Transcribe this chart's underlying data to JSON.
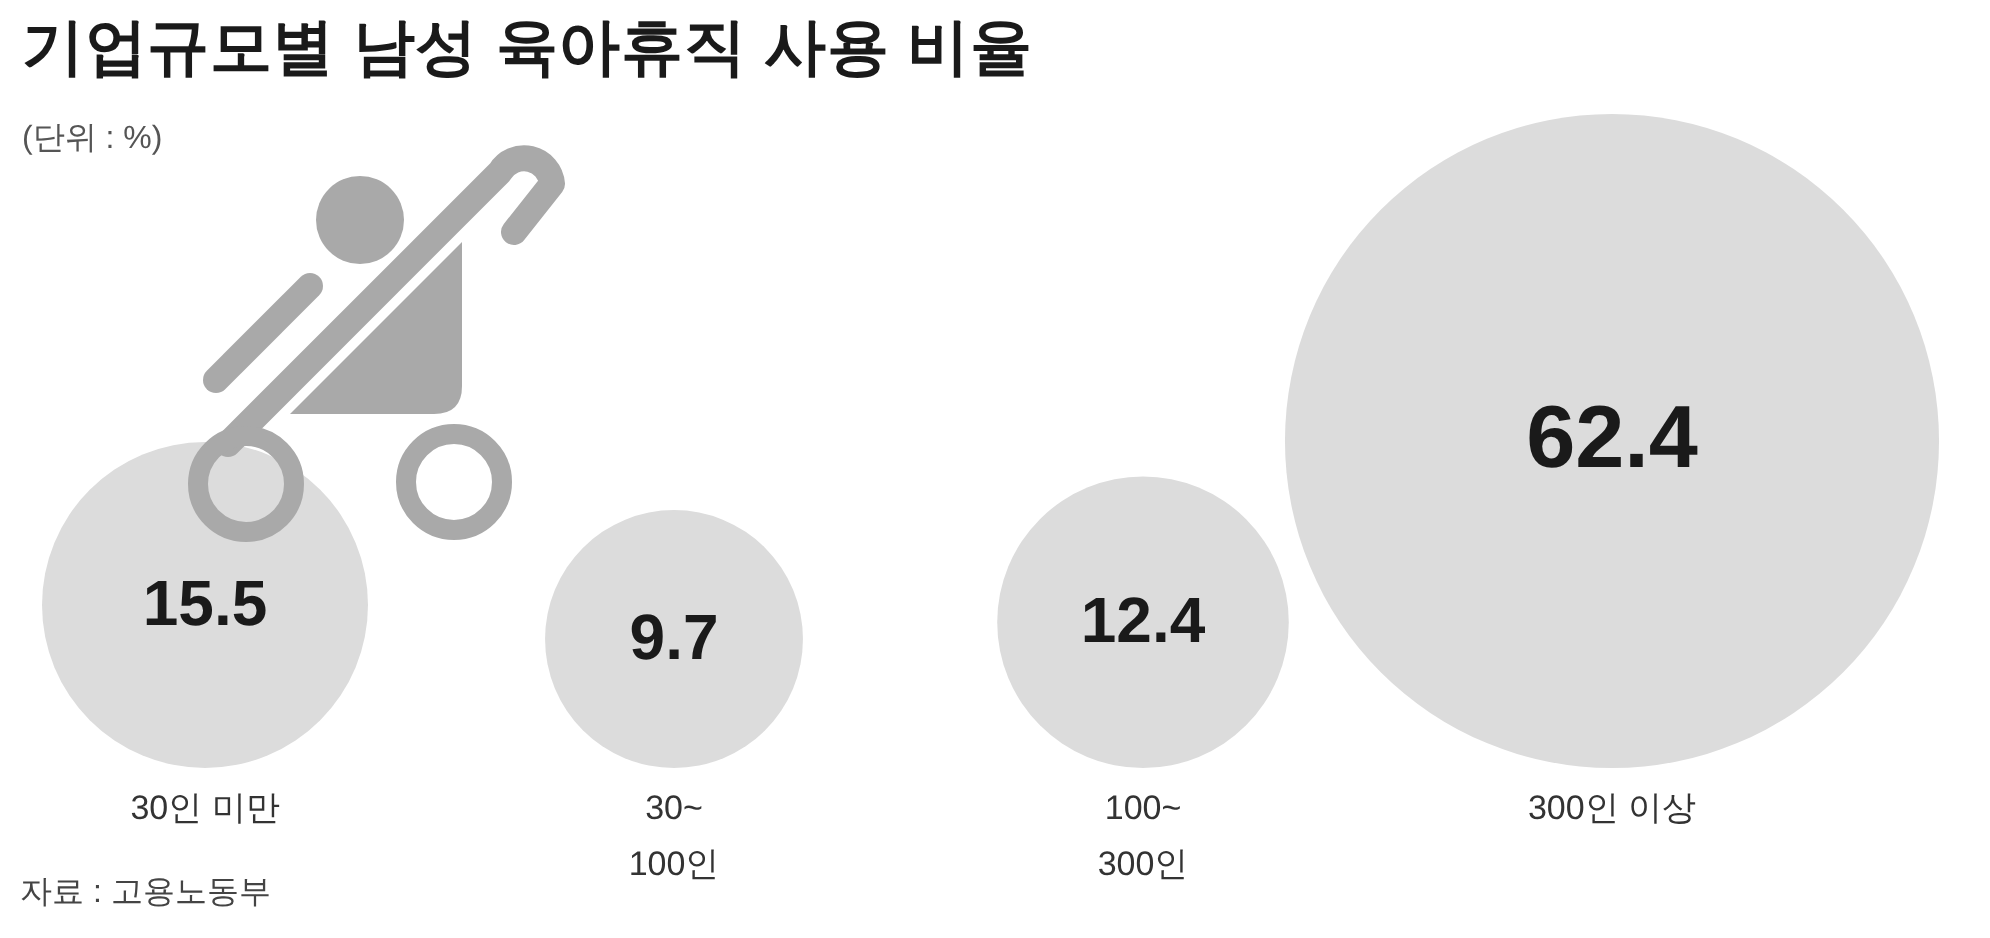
{
  "chart_data": {
    "type": "other",
    "title": "기업규모별 남성 육아휴직 사용 비율",
    "subtitle": "(단위 : %)",
    "categories": [
      "30인 미만",
      "30~\n100인",
      "100~\n300인",
      "300인 이상"
    ],
    "values": [
      15.5,
      9.7,
      12.4,
      62.4
    ],
    "color": "#dcdcdc",
    "data_labels": true,
    "annotations": [
      "자료 : 고용노동부"
    ]
  }
}
